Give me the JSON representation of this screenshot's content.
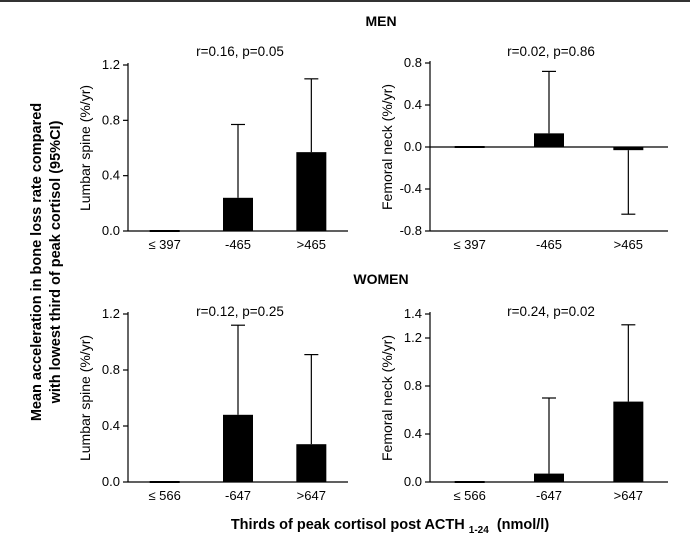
{
  "figure": {
    "y_label_line1": "Mean acceleration in bone loss rate compared",
    "y_label_line2": "with lowest third of peak cortisol (95%CI)",
    "x_label_main": "Thirds of peak cortisol post ACTH",
    "x_label_sub": "1-24",
    "x_label_unit": "(nmol/l)"
  },
  "groups": [
    {
      "title": "MEN"
    },
    {
      "title": "WOMEN"
    }
  ],
  "chart_data": [
    {
      "type": "bar",
      "group": "MEN",
      "title": "r=0.16, p=0.05",
      "ylabel": "Lumbar spine (%/yr)",
      "categories": [
        "≤ 397",
        "-465",
        ">465"
      ],
      "values": [
        0.0,
        0.24,
        0.57
      ],
      "error_upper": [
        0.0,
        0.77,
        1.1
      ],
      "error_lower": [
        null,
        null,
        null
      ],
      "ylim": [
        0.0,
        1.2
      ],
      "yticks": [
        0.0,
        0.4,
        0.8,
        1.2
      ],
      "ytick_labels": [
        "0.0",
        "0.4",
        "0.8",
        "1.2"
      ]
    },
    {
      "type": "bar",
      "group": "MEN",
      "title": "r=0.02, p=0.86",
      "ylabel": "Femoral neck (%/yr)",
      "categories": [
        "≤ 397",
        "-465",
        ">465"
      ],
      "values": [
        0.0,
        0.13,
        -0.03
      ],
      "error_upper": [
        null,
        0.72,
        null
      ],
      "error_lower": [
        null,
        null,
        -0.64
      ],
      "ylim": [
        -0.8,
        0.8
      ],
      "yticks": [
        -0.8,
        -0.4,
        0.0,
        0.4,
        0.8
      ],
      "ytick_labels": [
        "-0.8",
        "-0.4",
        "0.0",
        "0.4",
        "0.8"
      ]
    },
    {
      "type": "bar",
      "group": "WOMEN",
      "title": "r=0.12, p=0.25",
      "ylabel": "Lumbar spine (%/yr)",
      "categories": [
        "≤ 566",
        "-647",
        ">647"
      ],
      "values": [
        0.0,
        0.48,
        0.27
      ],
      "error_upper": [
        0.0,
        1.12,
        0.91
      ],
      "error_lower": [
        null,
        null,
        null
      ],
      "ylim": [
        0.0,
        1.2
      ],
      "yticks": [
        0.0,
        0.4,
        0.8,
        1.2
      ],
      "ytick_labels": [
        "0.0",
        "0.4",
        "0.8",
        "1.2"
      ]
    },
    {
      "type": "bar",
      "group": "WOMEN",
      "title": "r=0.24, p=0.02",
      "ylabel": "Femoral neck (%/yr)",
      "categories": [
        "≤ 566",
        "-647",
        ">647"
      ],
      "values": [
        0.0,
        0.07,
        0.67
      ],
      "error_upper": [
        0.0,
        0.7,
        1.31
      ],
      "error_lower": [
        null,
        null,
        null
      ],
      "ylim": [
        0.0,
        1.4
      ],
      "yticks": [
        0.0,
        0.4,
        0.8,
        1.2,
        1.4
      ],
      "ytick_labels": [
        "0.0",
        "0.4",
        "0.8",
        "1.2",
        "1.4"
      ]
    }
  ]
}
